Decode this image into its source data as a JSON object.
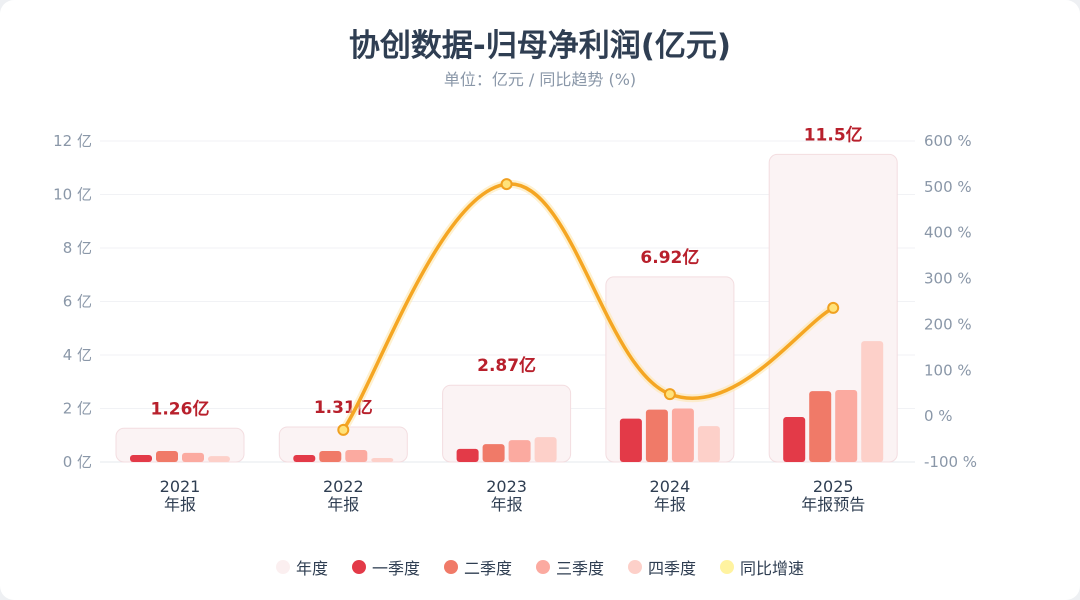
{
  "chart_data": {
    "type": "bar",
    "title": "协创数据-归母净利润(亿元)",
    "subtitle": "单位：亿元 / 同比趋势 (%)",
    "categories": [
      [
        "2021",
        "年报"
      ],
      [
        "2022",
        "年报"
      ],
      [
        "2023",
        "年报"
      ],
      [
        "2024",
        "年报"
      ],
      [
        "2025",
        "年报预告"
      ]
    ],
    "annual": {
      "name": "年度",
      "values": [
        1.26,
        1.31,
        2.87,
        6.92,
        11.5
      ],
      "labels": [
        "1.26亿",
        "1.31亿",
        "2.87亿",
        "6.92亿",
        "11.5亿"
      ]
    },
    "series": [
      {
        "name": "一季度",
        "color": "#e33a48",
        "values": [
          0.26,
          0.26,
          0.49,
          1.62,
          1.68
        ]
      },
      {
        "name": "二季度",
        "color": "#f07a68",
        "values": [
          0.41,
          0.41,
          0.67,
          1.96,
          2.65
        ]
      },
      {
        "name": "三季度",
        "color": "#fbaaa0",
        "values": [
          0.34,
          0.45,
          0.82,
          2.0,
          2.69
        ]
      },
      {
        "name": "四季度",
        "color": "#fdd0c9",
        "values": [
          0.22,
          0.15,
          0.93,
          1.34,
          4.52
        ]
      }
    ],
    "yoy": {
      "name": "同比增速",
      "color": "#f5a623",
      "values": [
        null,
        -30,
        506,
        48,
        236
      ]
    },
    "y_left": {
      "min": 0,
      "max": 12,
      "ticks": [
        "0 亿",
        "2 亿",
        "4 亿",
        "6 亿",
        "8 亿",
        "10 亿",
        "12 亿"
      ]
    },
    "y_right": {
      "min": -100,
      "max": 600,
      "ticks": [
        "-100 %",
        "0 %",
        "100 %",
        "200 %",
        "300 %",
        "400 %",
        "500 %",
        "600 %"
      ]
    },
    "legend": [
      "年度",
      "一季度",
      "二季度",
      "三季度",
      "四季度",
      "同比增速"
    ],
    "legend_colors": [
      "#fbeff0",
      "#e33a48",
      "#f07a68",
      "#fbaaa0",
      "#fdd0c9",
      "#fff3a0"
    ],
    "legend_position": "bottom"
  }
}
